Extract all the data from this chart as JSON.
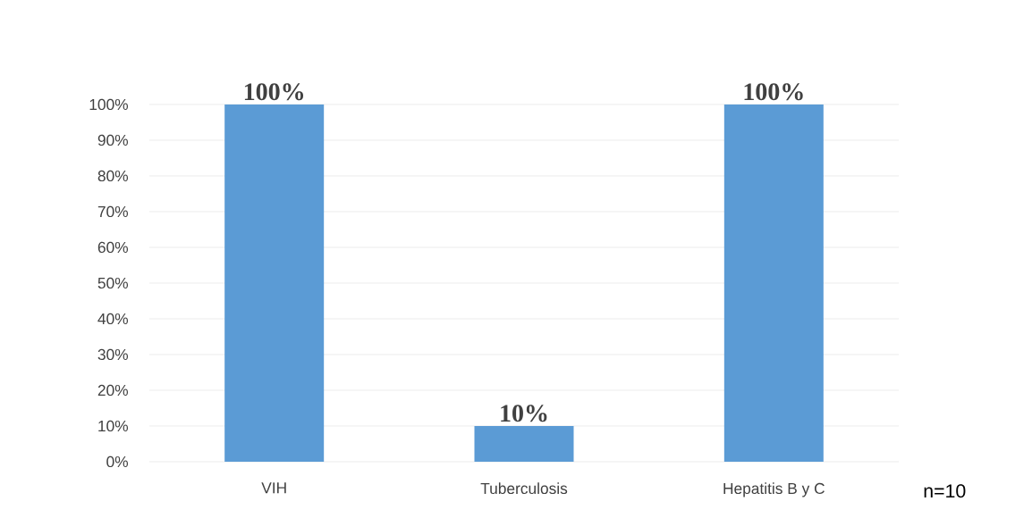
{
  "chart_data": {
    "type": "bar",
    "categories": [
      "VIH",
      "Tuberculosis",
      "Hepatitis B y C"
    ],
    "values": [
      100,
      10,
      100
    ],
    "color": "#5b9bd5",
    "value_labels": [
      "100%",
      "10%",
      "100%"
    ],
    "ylim": [
      0,
      100
    ],
    "yticks": [
      {
        "value": 0,
        "label": "0%"
      },
      {
        "value": 10,
        "label": "10%"
      },
      {
        "value": 20,
        "label": "20%"
      },
      {
        "value": 30,
        "label": "30%"
      },
      {
        "value": 40,
        "label": "40%"
      },
      {
        "value": 50,
        "label": "50%"
      },
      {
        "value": 60,
        "label": "60%"
      },
      {
        "value": 70,
        "label": "70%"
      },
      {
        "value": 80,
        "label": "80%"
      },
      {
        "value": 90,
        "label": "90%"
      },
      {
        "value": 100,
        "label": "100%"
      }
    ],
    "grid": true,
    "annotations": [
      "n=10"
    ]
  }
}
